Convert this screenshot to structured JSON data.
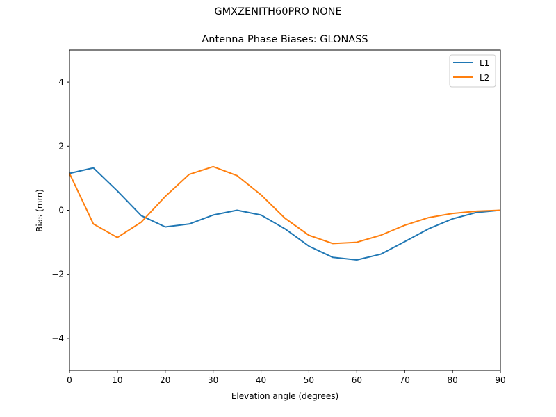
{
  "figure": {
    "suptitle": "GMXZENITH60PRO  NONE",
    "title": "Antenna Phase Biases: GLONASS"
  },
  "chart_data": {
    "type": "line",
    "title": "Antenna Phase Biases: GLONASS",
    "subtitle": "GMXZENITH60PRO  NONE",
    "xlabel": "Elevation angle (degrees)",
    "ylabel": "Bias (mm)",
    "xlim": [
      0,
      90
    ],
    "ylim": [
      -5,
      5
    ],
    "xticks": [
      0,
      10,
      20,
      30,
      40,
      50,
      60,
      70,
      80,
      90
    ],
    "yticks": [
      -4,
      -2,
      0,
      2,
      4
    ],
    "ytick_labels": [
      "−4",
      "−2",
      "0",
      "2",
      "4"
    ],
    "grid": false,
    "legend_position": "upper right",
    "x": [
      0,
      5,
      10,
      15,
      20,
      25,
      30,
      35,
      40,
      45,
      50,
      55,
      60,
      65,
      70,
      75,
      80,
      85,
      90
    ],
    "series": [
      {
        "name": "L1",
        "color": "#1f77b4",
        "values": [
          1.15,
          1.32,
          0.6,
          -0.17,
          -0.52,
          -0.43,
          -0.15,
          0.0,
          -0.15,
          -0.58,
          -1.12,
          -1.47,
          -1.55,
          -1.37,
          -0.98,
          -0.58,
          -0.27,
          -0.07,
          0.0
        ]
      },
      {
        "name": "L2",
        "color": "#ff7f0e",
        "values": [
          1.15,
          -0.43,
          -0.85,
          -0.37,
          0.43,
          1.12,
          1.36,
          1.08,
          0.48,
          -0.25,
          -0.78,
          -1.04,
          -1.0,
          -0.78,
          -0.47,
          -0.23,
          -0.1,
          -0.03,
          0.0
        ]
      }
    ]
  }
}
